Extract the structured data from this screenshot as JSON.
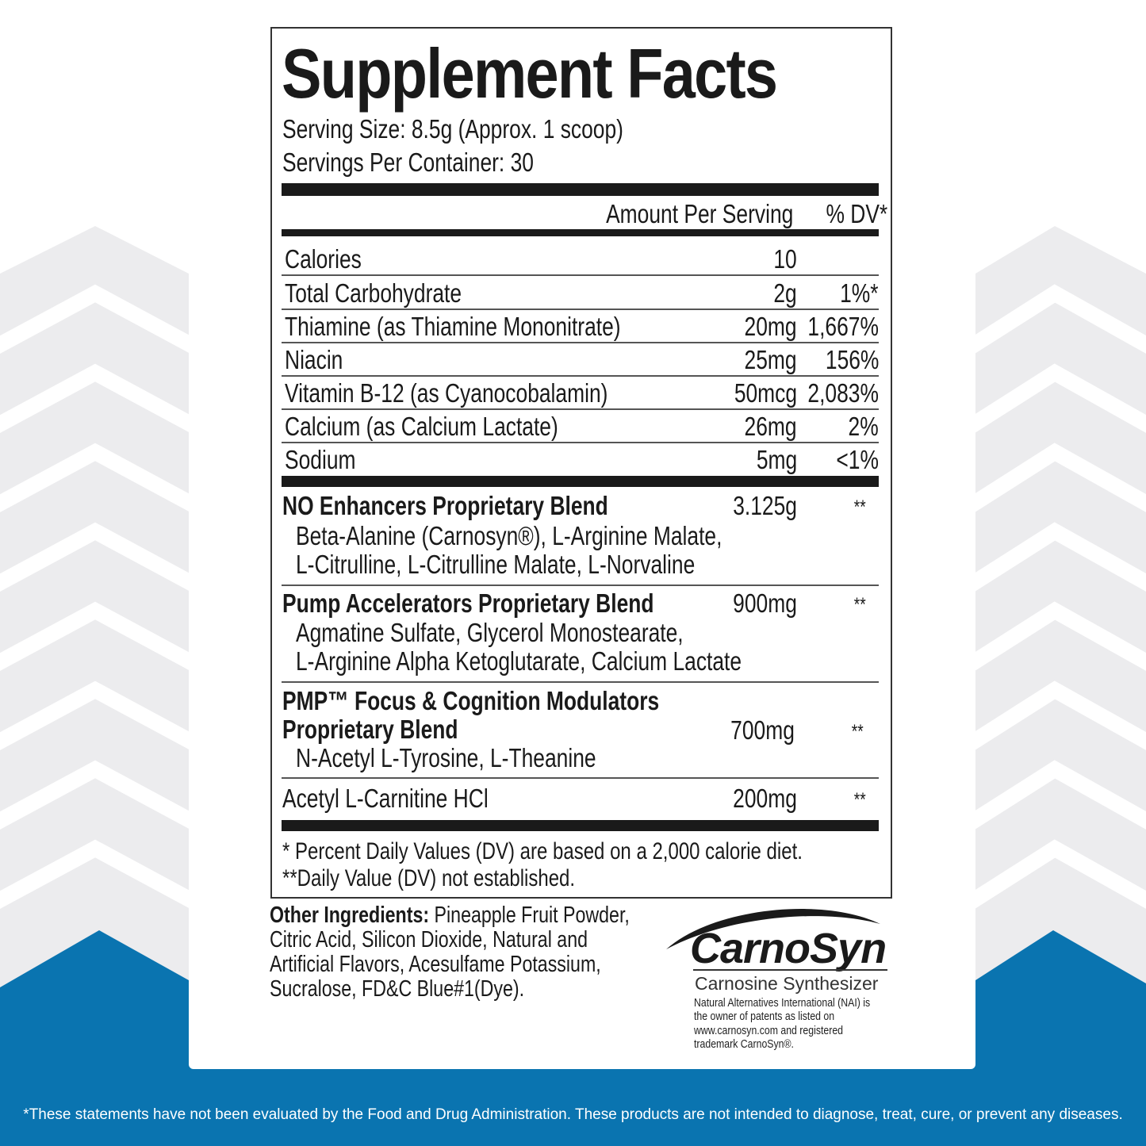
{
  "colors": {
    "brand_blue": "#0a74b0",
    "background_gray": "#ececee"
  },
  "title": "Supplement Facts",
  "serving_size": "Serving Size: 8.5g (Approx. 1 scoop)",
  "servings_per_container": "Servings Per Container: 30",
  "header": {
    "amount": "Amount Per Serving",
    "dv": "% DV*"
  },
  "nutrients": [
    {
      "name": "Calories",
      "amount": "10",
      "dv": ""
    },
    {
      "name": "Total Carbohydrate",
      "amount": "2g",
      "dv": "1%*"
    },
    {
      "name": "Thiamine (as Thiamine Mononitrate)",
      "amount": "20mg",
      "dv": "1,667%"
    },
    {
      "name": "Niacin",
      "amount": "25mg",
      "dv": "156%"
    },
    {
      "name": "Vitamin B-12 (as Cyanocobalamin)",
      "amount": "50mcg",
      "dv": "2,083%"
    },
    {
      "name": "Calcium (as Calcium Lactate)",
      "amount": "26mg",
      "dv": "2%"
    },
    {
      "name": "Sodium",
      "amount": "5mg",
      "dv": "<1%"
    }
  ],
  "blends": [
    {
      "name": "NO Enhancers Proprietary Blend",
      "amount": "3.125g",
      "dv": "**",
      "ingredients": [
        "Beta-Alanine (Carnosyn®), L-Arginine Malate,",
        "L-Citrulline, L-Citrulline Malate, L-Norvaline"
      ]
    },
    {
      "name": "Pump Accelerators Proprietary Blend",
      "amount": "900mg",
      "dv": "**",
      "ingredients": [
        "Agmatine Sulfate, Glycerol Monostearate,",
        "L-Arginine Alpha Ketoglutarate, Calcium Lactate"
      ]
    },
    {
      "name": "PMP™ Focus & Cognition Modulators",
      "name2": "Proprietary Blend",
      "amount": "700mg",
      "dv": "**",
      "ingredients": [
        "N-Acetyl L-Tyrosine, L-Theanine"
      ]
    },
    {
      "name": "Acetyl L-Carnitine HCl",
      "amount": "200mg",
      "dv": "**"
    }
  ],
  "footnotes": [
    "* Percent Daily Values (DV) are based on a 2,000 calorie diet.",
    "**Daily Value (DV) not established."
  ],
  "other_ingredients": {
    "label": "Other Ingredients:",
    "lines": [
      " Pineapple Fruit Powder,",
      "Citric Acid, Silicon Dioxide,  Natural and",
      "Artificial Flavors, Acesulfame Potassium,",
      "Sucralose,  FD&C Blue#1(Dye)."
    ]
  },
  "logo": {
    "name": "CarnoSyn",
    "tagline": "Carnosine Synthesizer",
    "notice": [
      "Natural Alternatives International (NAI) is",
      "the owner of patents as listed on",
      "www.carnosyn.com and registered",
      "trademark CarnoSyn®."
    ]
  },
  "disclaimer": "*These statements have not been evaluated by the Food and Drug Administration. These products are not intended to diagnose, treat, cure, or prevent any diseases."
}
